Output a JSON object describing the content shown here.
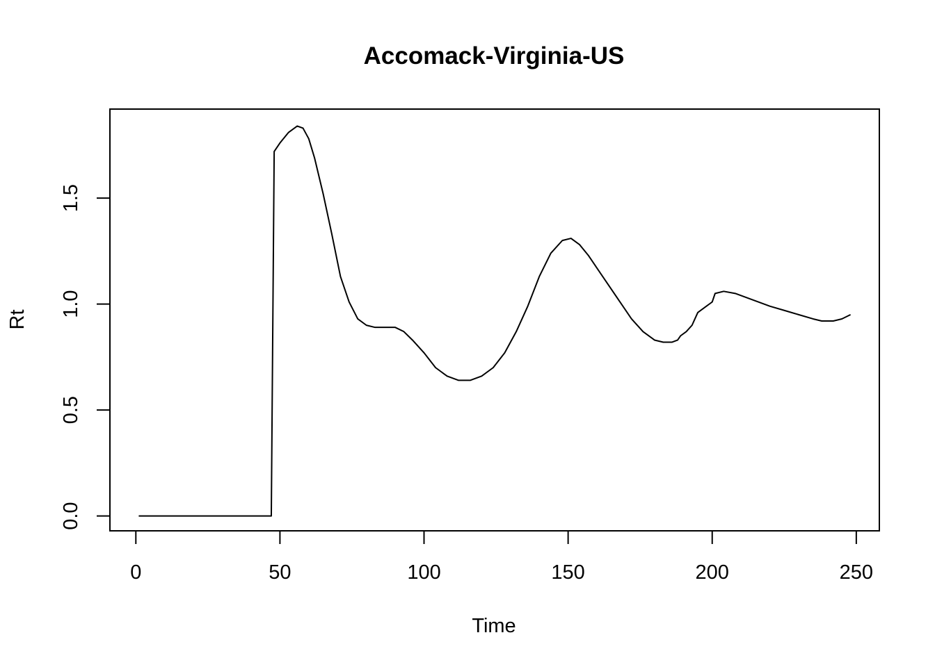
{
  "chart_data": {
    "type": "line",
    "title": "Accomack-Virginia-US",
    "xlabel": "Time",
    "ylabel": "Rt",
    "xlim": [
      -9,
      258
    ],
    "ylim": [
      -0.07,
      1.92
    ],
    "x_ticks": [
      0,
      50,
      100,
      150,
      200,
      250
    ],
    "x_tick_labels": [
      "0",
      "50",
      "100",
      "150",
      "200",
      "250"
    ],
    "y_ticks": [
      0.0,
      0.5,
      1.0,
      1.5
    ],
    "y_tick_labels": [
      "0.0",
      "0.5",
      "1.0",
      "1.5"
    ],
    "grid": false,
    "legend": "none",
    "line_color": "#000000",
    "series": [
      {
        "x": [
          1,
          10,
          20,
          30,
          40,
          47,
          48,
          50,
          53,
          56,
          58,
          60,
          62,
          65,
          68,
          71,
          74,
          77,
          80,
          83,
          86,
          90,
          93,
          96,
          100,
          104,
          108,
          112,
          116,
          120,
          124,
          128,
          132,
          136,
          140,
          144,
          148,
          151,
          154,
          157,
          160,
          164,
          168,
          172,
          176,
          180,
          183,
          186,
          188,
          189,
          191,
          193,
          194,
          195,
          197,
          199,
          200,
          201,
          204,
          208,
          212,
          216,
          220,
          225,
          230,
          235,
          238,
          242,
          245,
          248
        ],
        "y": [
          0.0,
          0.0,
          0.0,
          0.0,
          0.0,
          0.0,
          1.72,
          1.76,
          1.81,
          1.84,
          1.83,
          1.78,
          1.69,
          1.52,
          1.33,
          1.13,
          1.01,
          0.93,
          0.9,
          0.89,
          0.89,
          0.89,
          0.87,
          0.83,
          0.77,
          0.7,
          0.66,
          0.64,
          0.64,
          0.66,
          0.7,
          0.77,
          0.87,
          0.99,
          1.13,
          1.24,
          1.3,
          1.31,
          1.28,
          1.23,
          1.17,
          1.09,
          1.01,
          0.93,
          0.87,
          0.83,
          0.82,
          0.82,
          0.83,
          0.85,
          0.87,
          0.9,
          0.93,
          0.96,
          0.98,
          1.0,
          1.01,
          1.05,
          1.06,
          1.05,
          1.03,
          1.01,
          0.99,
          0.97,
          0.95,
          0.93,
          0.92,
          0.92,
          0.93,
          0.95
        ]
      }
    ]
  }
}
